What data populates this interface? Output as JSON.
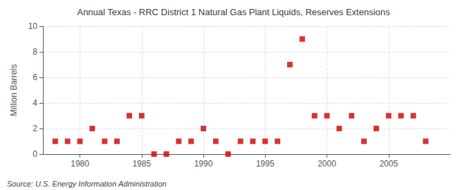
{
  "chart_data": {
    "type": "scatter",
    "title": "Annual Texas - RRC District 1 Natural Gas Plant Liquids, Reserves Extensions",
    "ylabel": "Million Barrels",
    "annotations": [
      "Source: U.S. Energy Information Administration"
    ],
    "x": [
      1978,
      1979,
      1980,
      1981,
      1982,
      1983,
      1984,
      1985,
      1986,
      1987,
      1988,
      1989,
      1990,
      1991,
      1992,
      1993,
      1994,
      1995,
      1996,
      1997,
      1998,
      1999,
      2000,
      2001,
      2002,
      2003,
      2004,
      2005,
      2006,
      2007,
      2008
    ],
    "values": [
      1,
      1,
      1,
      2,
      1,
      1,
      3,
      3,
      0,
      0,
      1,
      1,
      2,
      1,
      0,
      1,
      1,
      1,
      1,
      7,
      9,
      3,
      3,
      2,
      3,
      1,
      2,
      3,
      3,
      3,
      1
    ],
    "xlim": [
      1977,
      2010
    ],
    "xticks": [
      1980,
      1985,
      1990,
      1995,
      2000,
      2005
    ],
    "ylim": [
      0,
      10
    ],
    "yticks": [
      0,
      2,
      4,
      6,
      8,
      10
    ],
    "color": "#cc0000",
    "marker": "square",
    "grid": true
  }
}
